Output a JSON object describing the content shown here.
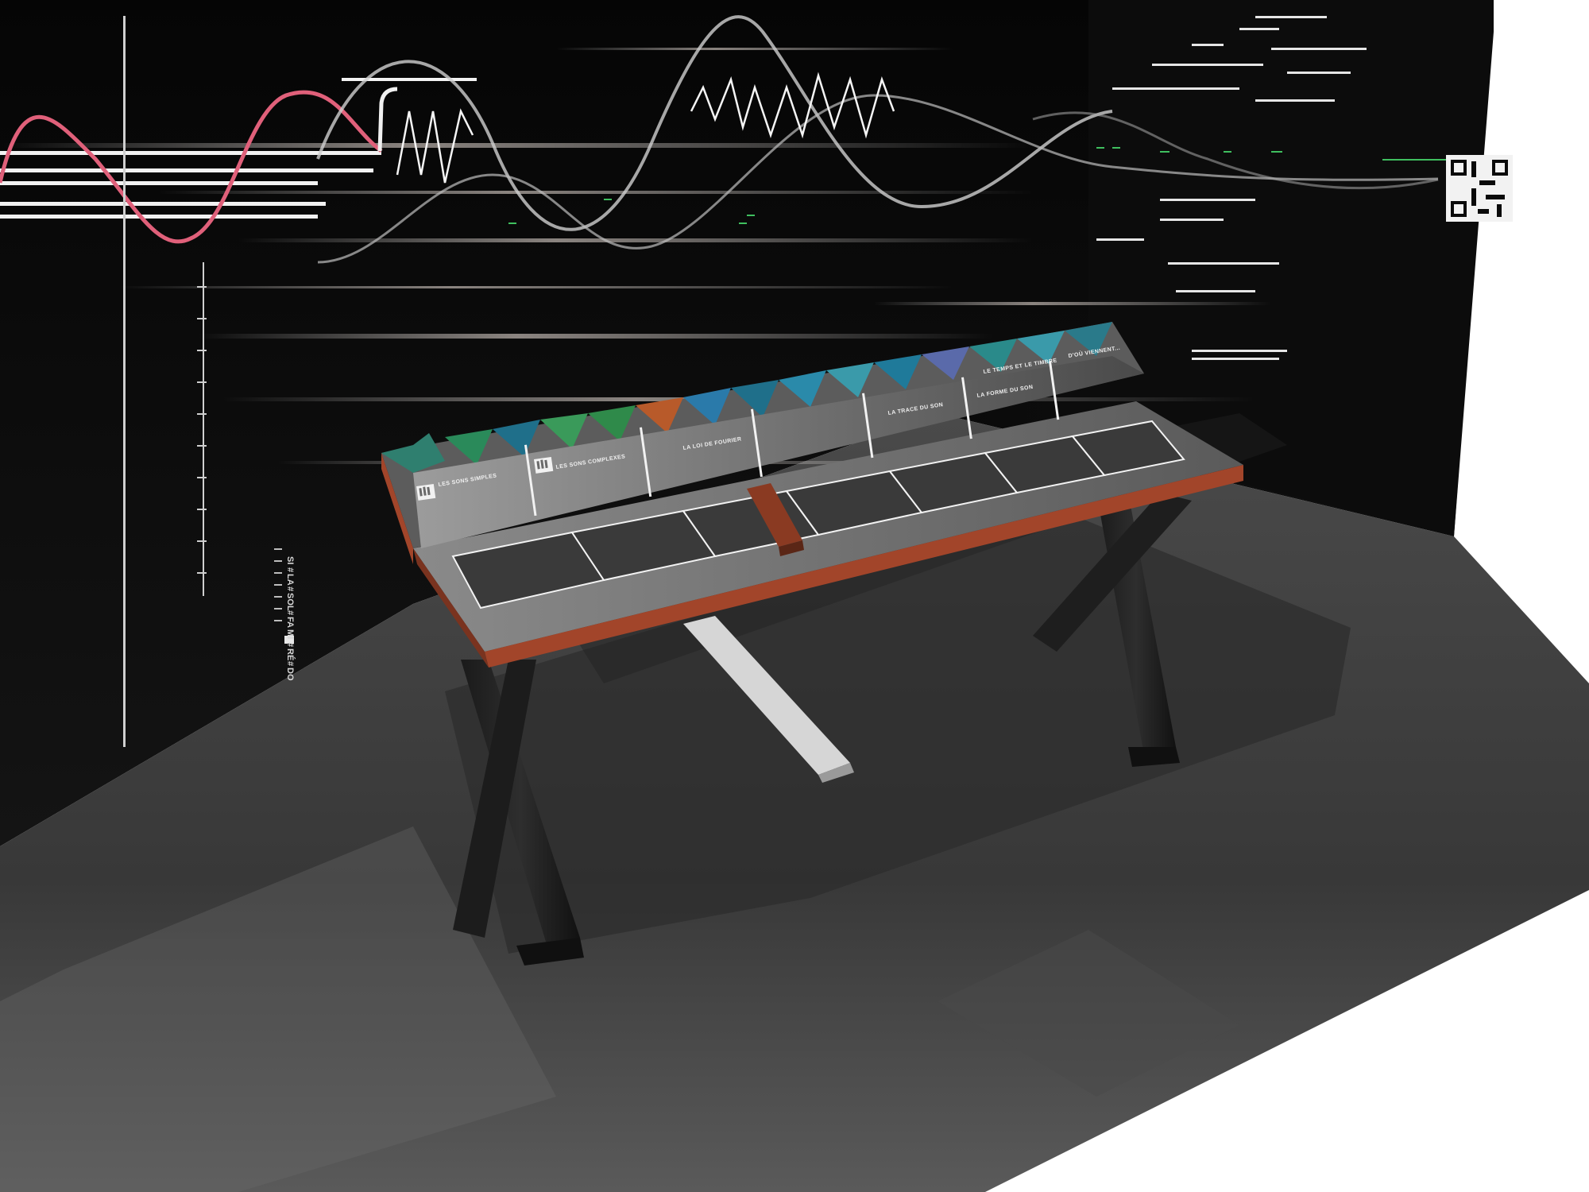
{
  "scene": {
    "colors": {
      "background": "#ffffff",
      "wall": "#0b0b0b",
      "floor": "#3a3a3a",
      "desk_edge": "#a2452a",
      "desk_top": "#6b6b6b",
      "accent_wave": "#e0607a",
      "grid_green": "#3fbf5f"
    }
  },
  "scale": {
    "notes": [
      "SI",
      "#",
      "LA",
      "#",
      "SOL",
      "#",
      "FA",
      "MI",
      "#",
      "RÉ",
      "#",
      "DO"
    ]
  },
  "panels": [
    {
      "title": "LES SONS SIMPLES"
    },
    {
      "title": "LES SONS COMPLEXES"
    },
    {
      "title": "LA LOI DE FOURIER"
    },
    {
      "title": ""
    },
    {
      "title": "LA TRACE DU SON"
    },
    {
      "title": "LA FORME DU SON"
    },
    {
      "title": "LE TEMPS ET LE TIMBRE"
    },
    {
      "title": "D'OÙ VIENNENT..."
    }
  ],
  "icons": {
    "hand": "hand-icon",
    "qr": "qr-code-icon"
  }
}
